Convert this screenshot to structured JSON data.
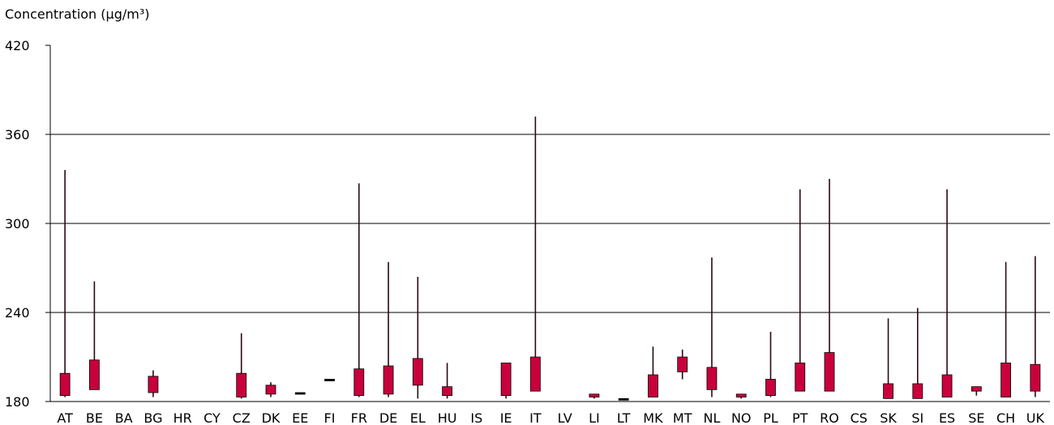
{
  "chart_data": {
    "type": "box",
    "ylabel": "Concentration (μg/m³)",
    "ylim": [
      180,
      420
    ],
    "yticks": [
      180,
      240,
      300,
      360,
      420
    ],
    "grid": true,
    "colors": {
      "box": "#c8003c",
      "whisker": "#2a0a14",
      "grid": "#000000"
    },
    "series": [
      {
        "category": "AT",
        "min": 183,
        "q1": 184,
        "q3": 199,
        "max": 336
      },
      {
        "category": "BE",
        "min": 188,
        "q1": 188,
        "q3": 208,
        "max": 261
      },
      {
        "category": "BA"
      },
      {
        "category": "BG",
        "min": 183,
        "q1": 186,
        "q3": 197,
        "max": 201
      },
      {
        "category": "HR"
      },
      {
        "category": "CY"
      },
      {
        "category": "CZ",
        "min": 182,
        "q1": 183,
        "q3": 199,
        "max": 226
      },
      {
        "category": "DK",
        "min": 183,
        "q1": 185,
        "q3": 191,
        "max": 193
      },
      {
        "category": "EE",
        "min": 185,
        "q1": 185,
        "q3": 186,
        "max": 186
      },
      {
        "category": "FI",
        "min": 194,
        "q1": 194,
        "q3": 195,
        "max": 195
      },
      {
        "category": "FR",
        "min": 183,
        "q1": 184,
        "q3": 202,
        "max": 327
      },
      {
        "category": "DE",
        "min": 183,
        "q1": 185,
        "q3": 204,
        "max": 274
      },
      {
        "category": "EL",
        "min": 182,
        "q1": 191,
        "q3": 209,
        "max": 264
      },
      {
        "category": "HU",
        "min": 182,
        "q1": 184,
        "q3": 190,
        "max": 206
      },
      {
        "category": "IS"
      },
      {
        "category": "IE",
        "min": 182,
        "q1": 184,
        "q3": 206,
        "max": 206
      },
      {
        "category": "IT",
        "min": 187,
        "q1": 187,
        "q3": 210,
        "max": 372
      },
      {
        "category": "LV"
      },
      {
        "category": "LI",
        "min": 182,
        "q1": 183,
        "q3": 185,
        "max": 185
      },
      {
        "category": "LT",
        "min": 181,
        "q1": 181,
        "q3": 182,
        "max": 182
      },
      {
        "category": "MK",
        "min": 183,
        "q1": 183,
        "q3": 198,
        "max": 217
      },
      {
        "category": "MT",
        "min": 195,
        "q1": 200,
        "q3": 210,
        "max": 215
      },
      {
        "category": "NL",
        "min": 183,
        "q1": 188,
        "q3": 203,
        "max": 277
      },
      {
        "category": "NO",
        "min": 182,
        "q1": 183,
        "q3": 185,
        "max": 185
      },
      {
        "category": "PL",
        "min": 183,
        "q1": 184,
        "q3": 195,
        "max": 227
      },
      {
        "category": "PT",
        "min": 187,
        "q1": 187,
        "q3": 206,
        "max": 323
      },
      {
        "category": "RO",
        "min": 187,
        "q1": 187,
        "q3": 213,
        "max": 330
      },
      {
        "category": "CS"
      },
      {
        "category": "SK",
        "min": 182,
        "q1": 182,
        "q3": 192,
        "max": 236
      },
      {
        "category": "SI",
        "min": 182,
        "q1": 182,
        "q3": 192,
        "max": 243
      },
      {
        "category": "ES",
        "min": 183,
        "q1": 183,
        "q3": 198,
        "max": 323
      },
      {
        "category": "SE",
        "min": 184,
        "q1": 187,
        "q3": 190,
        "max": 190
      },
      {
        "category": "CH",
        "min": 183,
        "q1": 183,
        "q3": 206,
        "max": 274
      },
      {
        "category": "UK",
        "min": 183,
        "q1": 187,
        "q3": 205,
        "max": 278
      }
    ]
  }
}
